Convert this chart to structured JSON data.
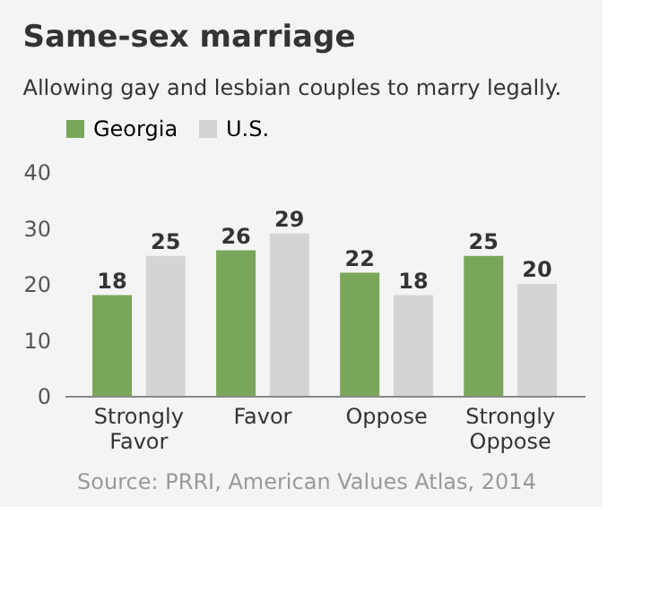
{
  "chart_data": {
    "type": "bar",
    "title": "Same-sex marriage",
    "subtitle": "Allowing gay and lesbian couples to marry legally.",
    "categories": [
      "Strongly Favor",
      "Favor",
      "Oppose",
      "Strongly Oppose"
    ],
    "series": [
      {
        "name": "Georgia",
        "color": "#7aa65a",
        "values": [
          18,
          26,
          22,
          25
        ]
      },
      {
        "name": "U.S.",
        "color": "#d4d4d4",
        "values": [
          25,
          29,
          18,
          20
        ]
      }
    ],
    "ylim": [
      0,
      40
    ],
    "yticks": [
      0,
      10,
      20,
      30,
      40
    ],
    "grid": false,
    "legend": "top",
    "data_labels": true,
    "annotations": [
      "Source: PRRI, American Values Atlas, 2014"
    ]
  }
}
